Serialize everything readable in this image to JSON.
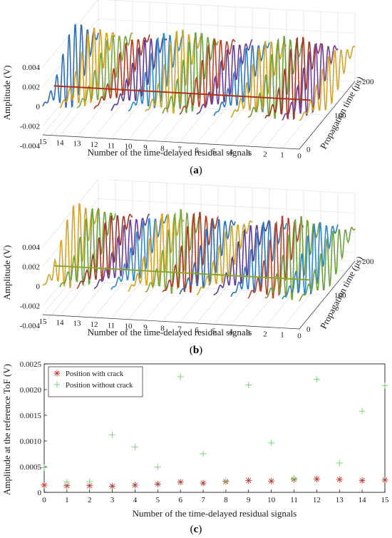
{
  "panels": [
    {
      "id": "a",
      "caption_label": "a"
    },
    {
      "id": "b",
      "caption_label": "b"
    },
    {
      "id": "c",
      "caption_label": "c"
    }
  ],
  "chart_data": [
    {
      "type": "line",
      "panel": "a",
      "xlabel": "Number of the time-delayed residual signals",
      "ylabel": "Amplitude (V)",
      "zlabel": "Propagation time (μs)",
      "x_ticks": [
        "15",
        "14",
        "13",
        "12",
        "11",
        "10",
        "9",
        "8",
        "7",
        "6",
        "5",
        "4",
        "3",
        "2",
        "1",
        "0"
      ],
      "y_ticks": [
        "0.004",
        "0.002",
        "0",
        "-0.002",
        "-0.004"
      ],
      "z_ticks": [
        "0",
        "100",
        "200"
      ],
      "ylim": [
        -0.004,
        0.004
      ],
      "zlim": [
        0,
        200
      ],
      "grid": true,
      "series_colors": [
        "#2e6db4",
        "#d9a21c",
        "#7aa63a",
        "#b03a1f",
        "#5f3a8e",
        "#2f86c8",
        "#c9a628",
        "#6aa33c",
        "#b9432a",
        "#6c3d96",
        "#2c79bf",
        "#d0a11f",
        "#6f9d37",
        "#a33623",
        "#733f9a",
        "#d4a52b"
      ],
      "reference_line_color": "#b0301a"
    },
    {
      "type": "line",
      "panel": "b",
      "xlabel": "Number of the time-delayed residual signals",
      "ylabel": "Amplitude (V)",
      "zlabel": "Propagation time (μs)",
      "x_ticks": [
        "15",
        "14",
        "13",
        "12",
        "11",
        "10",
        "9",
        "8",
        "7",
        "6",
        "5",
        "4",
        "3",
        "2",
        "1",
        "0"
      ],
      "y_ticks": [
        "0.004",
        "0.002",
        "0",
        "-0.002",
        "-0.004"
      ],
      "z_ticks": [
        "0",
        "100",
        "200"
      ],
      "ylim": [
        -0.004,
        0.004
      ],
      "zlim": [
        0,
        200
      ],
      "grid": true,
      "series_colors": [
        "#d4a52b",
        "#6aa33c",
        "#a33623",
        "#6c3d96",
        "#2f86c8",
        "#d9a21c",
        "#7aa63a",
        "#b03a1f",
        "#2e6db4",
        "#c9a628",
        "#5f3a8e",
        "#2c79bf",
        "#b9432a",
        "#6f9d37",
        "#2f86c8",
        "#6aa33c"
      ],
      "reference_line_color": "#8aa62a"
    },
    {
      "type": "scatter",
      "panel": "c",
      "xlabel": "Number of the time-delayed residual signals",
      "ylabel": "Amplitude at the reference ToF (V)",
      "x_ticks": [
        "0",
        "1",
        "2",
        "3",
        "4",
        "5",
        "6",
        "7",
        "8",
        "9",
        "10",
        "11",
        "12",
        "13",
        "14",
        "15"
      ],
      "y_ticks": [
        "0",
        "0.0005",
        "0.0010",
        "0.0015",
        "0.0020",
        "0.0025"
      ],
      "xlim": [
        0,
        15
      ],
      "ylim": [
        0,
        0.0025
      ],
      "grid": false,
      "legend_position": "top-left",
      "x": [
        0,
        1,
        2,
        3,
        4,
        5,
        6,
        7,
        8,
        9,
        10,
        11,
        12,
        13,
        14,
        15
      ],
      "series": [
        {
          "name": "Position with crack",
          "marker": "asterisk",
          "color": "#c0392b",
          "values": [
            0.00014,
            0.00013,
            0.00013,
            0.00012,
            0.00014,
            0.00016,
            0.0002,
            0.00018,
            0.00021,
            0.00023,
            0.00022,
            0.00025,
            0.00026,
            0.00025,
            0.00023,
            0.00024
          ]
        },
        {
          "name": "Position without crack",
          "marker": "plus",
          "color": "#6fd36f",
          "values": [
            0.00048,
            0.0002,
            0.00021,
            0.00112,
            0.00088,
            0.00049,
            0.00225,
            0.00075,
            0.00022,
            0.00209,
            0.00096,
            0.00027,
            0.0022,
            0.00057,
            0.00158,
            0.00208
          ]
        }
      ]
    }
  ]
}
